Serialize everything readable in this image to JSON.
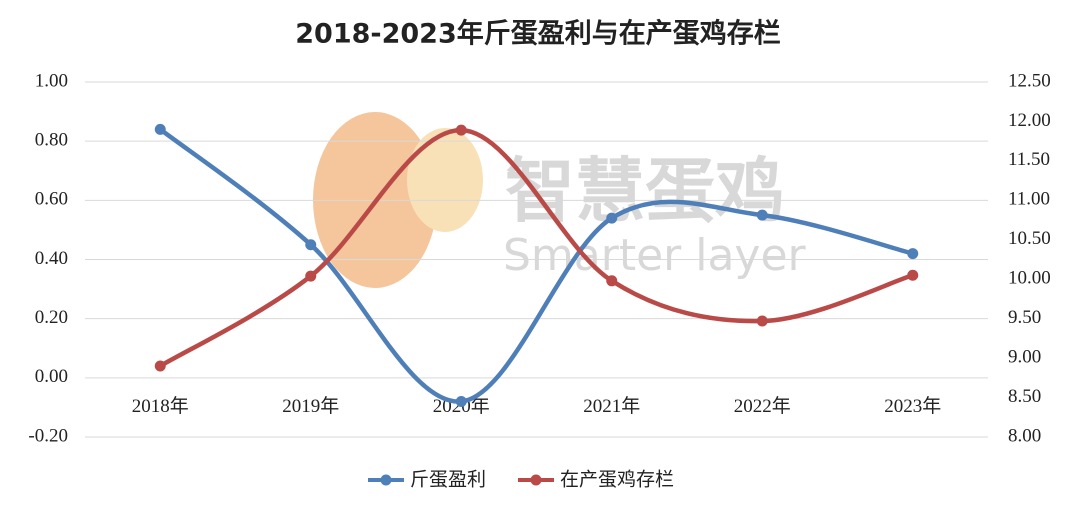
{
  "chart_data": {
    "type": "line",
    "title": "2018-2023年斤蛋盈利与在产蛋鸡存栏",
    "watermark": [
      "智慧蛋鸡",
      "Smarter layer"
    ],
    "categories": [
      "2018年",
      "2019年",
      "2020年",
      "2021年",
      "2022年",
      "2023年"
    ],
    "series": [
      {
        "name": "斤蛋盈利",
        "color": "#4f7fb8",
        "values": [
          0.84,
          0.45,
          -0.08,
          0.54,
          0.55,
          0.42
        ]
      },
      {
        "name": "在产蛋鸡存栏",
        "color": "#b94a48",
        "axis": "y2",
        "values": [
          8.9,
          10.04,
          11.89,
          9.98,
          9.47,
          10.05
        ]
      }
    ],
    "ylim": [
      -0.2,
      1.0
    ],
    "yticks": [
      {
        "value": -0.2,
        "label": "-0.20"
      },
      {
        "value": 0,
        "label": "0.00"
      },
      {
        "value": 0.2,
        "label": "0.20"
      },
      {
        "value": 0.4,
        "label": "0.40"
      },
      {
        "value": 0.6,
        "label": "0.60"
      },
      {
        "value": 0.8,
        "label": "0.80"
      },
      {
        "value": 1.0,
        "label": "1.00"
      }
    ],
    "y2lim": [
      8.0,
      12.5
    ],
    "y2ticks": [
      {
        "value": 8.0,
        "label": "8.00"
      },
      {
        "value": 8.5,
        "label": "8.50"
      },
      {
        "value": 9.0,
        "label": "9.00"
      },
      {
        "value": 9.5,
        "label": "9.50"
      },
      {
        "value": 10.0,
        "label": "10.00"
      },
      {
        "value": 10.5,
        "label": "10.50"
      },
      {
        "value": 11.0,
        "label": "11.00"
      },
      {
        "value": 11.5,
        "label": "11.50"
      },
      {
        "value": 12.0,
        "label": "12.00"
      },
      {
        "value": 12.5,
        "label": "12.50"
      }
    ],
    "grid": true,
    "smooth": true,
    "legend": "bottom"
  }
}
